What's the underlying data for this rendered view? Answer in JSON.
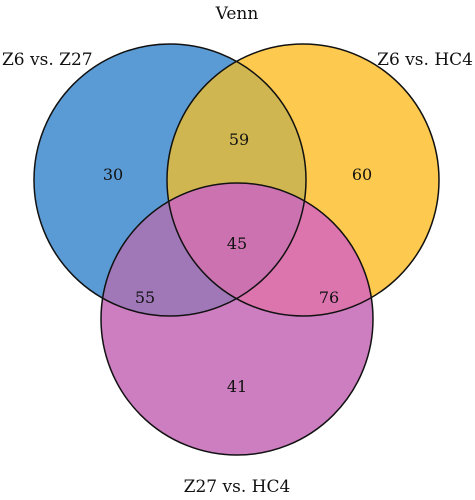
{
  "title": "Venn",
  "sets": [
    {
      "id": "a",
      "name": "Z6 vs. Z27",
      "color": "#5b9bd5"
    },
    {
      "id": "b",
      "name": "Z6 vs. HC4",
      "color": "#fdc94e"
    },
    {
      "id": "c",
      "name": "Z27 vs. HC4",
      "color": "#cc7ec0"
    }
  ],
  "regions": {
    "a_only": "30",
    "b_only": "60",
    "c_only": "41",
    "ab": "59",
    "ac": "55",
    "bc": "76",
    "abc": "45"
  },
  "region_colors": {
    "ab": "#cfb650",
    "ac": "#a078b8",
    "bc": "#dc74ae",
    "abc": "#cc72b0"
  }
}
